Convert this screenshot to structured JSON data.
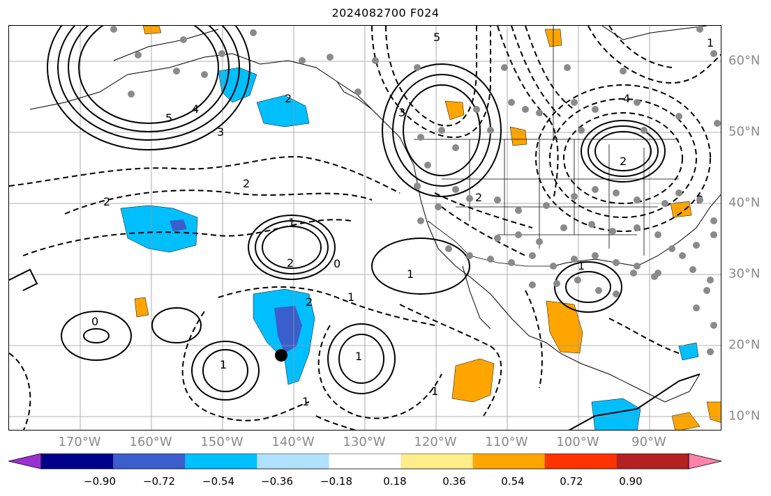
{
  "title": "2024082700 F024",
  "axes": {
    "lon_labels": [
      "170°W",
      "160°W",
      "150°W",
      "140°W",
      "130°W",
      "120°W",
      "110°W",
      "100°W",
      "90°W"
    ],
    "lat_labels": [
      "60°N",
      "50°N",
      "40°N",
      "30°N",
      "20°N",
      "10°N"
    ]
  },
  "colorbar": {
    "ticks": [
      "−0.90",
      "−0.72",
      "−0.54",
      "−0.36",
      "−0.18",
      "0.18",
      "0.36",
      "0.54",
      "0.72",
      "0.90"
    ],
    "colors": [
      "#9b30d0",
      "#00008b",
      "#3a5fcd",
      "#00bfff",
      "#b0e2ff",
      "#ffffff",
      "#ffec8b",
      "#ffa500",
      "#ff3300",
      "#b22222",
      "#ff82ab"
    ]
  },
  "contour_labels": {
    "solid": [
      "5",
      "4",
      "3",
      "1",
      "2",
      "0",
      "1",
      "2",
      "1",
      "1",
      "2",
      "0"
    ],
    "dashed": [
      "5",
      "4",
      "3",
      "2",
      "2",
      "1",
      "2",
      "1",
      "1",
      "1",
      "1",
      "2",
      "3"
    ]
  },
  "marker": {
    "lon": -141.5,
    "lat": 18.7,
    "shape": "black-dot"
  },
  "station_dots": "gray",
  "gridlines": true
}
